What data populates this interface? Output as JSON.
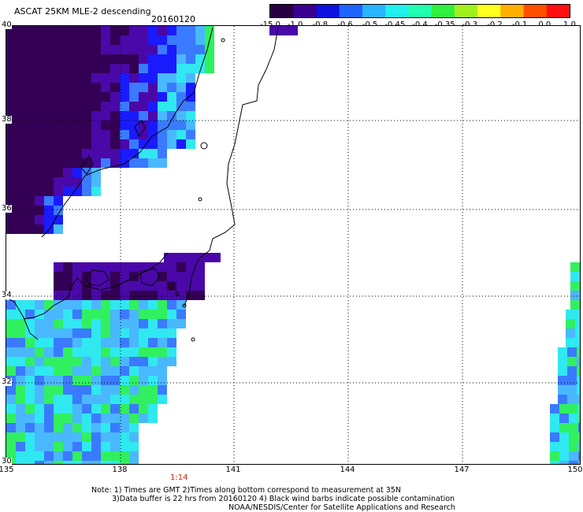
{
  "header": {
    "title": "ASCAT 25KM MLE-2 descending",
    "date": "20160120"
  },
  "colorbar": {
    "labels": [
      "-15.0",
      "-1.0",
      "-0.8",
      "-0.6",
      "-0.5",
      "-0.45",
      "-0.4",
      "-0.35",
      "-0.3",
      "-0.2",
      "-0.1",
      "0.0",
      "1.0"
    ],
    "colors": [
      "#2a0044",
      "#3b0090",
      "#1010e0",
      "#1e64ff",
      "#28b4ff",
      "#20f0f0",
      "#20ffb0",
      "#30f040",
      "#a0f020",
      "#ffff20",
      "#ffb000",
      "#ff5000",
      "#ff1010"
    ]
  },
  "axes": {
    "lon_labels": [
      "135",
      "138",
      "141",
      "144",
      "147",
      "150"
    ],
    "lat_labels": [
      "40",
      "38",
      "36",
      "34",
      "32",
      "30"
    ]
  },
  "time_mark": "1:14",
  "notes": {
    "line1": "Note: 1) Times are GMT 2)Times along bottom correspond to measurement at 35N",
    "line2": "3)Data buffer is 22 hrs from 20160120 4) Black wind barbs indicate possible contamination",
    "line3": "NOAA/NESDIS/Center for Satellite Applications and Research"
  },
  "palette": {
    "deep_purple": "#330055",
    "purple": "#4a08a8",
    "blue": "#1a1aff",
    "mid_blue": "#3a7aff",
    "light_blue": "#4ab8ff",
    "cyan": "#30e8f0",
    "green": "#30f060",
    "coast": "#000000"
  }
}
